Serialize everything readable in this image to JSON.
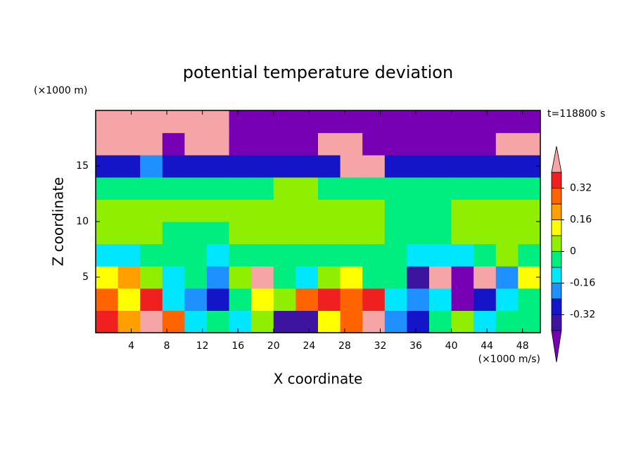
{
  "chart_data": {
    "type": "contour",
    "title": "potential temperature deviation",
    "xlabel": "X coordinate",
    "ylabel": "Z coordinate",
    "x_unit_label": "(×1000 m/s)",
    "y_unit_label": "(×1000 m)",
    "annotation": "t=118800 s",
    "xlim": [
      0,
      50
    ],
    "ylim": [
      0,
      20
    ],
    "xticks": [
      4,
      8,
      12,
      16,
      20,
      24,
      28,
      32,
      36,
      40,
      44,
      48
    ],
    "yticks": [
      5,
      10,
      15
    ],
    "x": [
      1.25,
      3.75,
      6.25,
      8.75,
      11.25,
      13.75,
      16.25,
      18.75,
      21.25,
      23.75,
      26.25,
      28.75,
      31.25,
      33.75,
      36.25,
      38.75,
      41.25,
      43.75,
      46.25,
      48.75
    ],
    "y": [
      1,
      3,
      5,
      7,
      9,
      11,
      13,
      15,
      17,
      19
    ],
    "z": [
      [
        0.38,
        0.2,
        0.5,
        0.25,
        -0.1,
        -0.04,
        -0.1,
        0.05,
        -0.35,
        -0.4,
        0.1,
        0.3,
        0.5,
        -0.2,
        -0.25,
        -0.04,
        0.05,
        -0.1,
        -0.04,
        -0.04
      ],
      [
        0.3,
        0.1,
        0.35,
        -0.1,
        -0.2,
        -0.3,
        -0.04,
        0.1,
        0.05,
        0.3,
        0.38,
        0.3,
        0.38,
        -0.1,
        -0.2,
        -0.1,
        -0.45,
        -0.3,
        -0.1,
        -0.04
      ],
      [
        0.1,
        0.2,
        0.05,
        -0.1,
        -0.04,
        -0.2,
        0.03,
        0.5,
        -0.04,
        -0.1,
        0.05,
        0.1,
        -0.04,
        -0.04,
        -0.35,
        0.5,
        -0.45,
        0.5,
        -0.2,
        0.1
      ],
      [
        -0.1,
        -0.1,
        -0.04,
        -0.04,
        -0.04,
        -0.1,
        -0.04,
        -0.04,
        -0.04,
        -0.04,
        -0.04,
        -0.04,
        -0.04,
        -0.04,
        -0.1,
        -0.1,
        -0.1,
        -0.04,
        0.05,
        -0.04
      ],
      [
        0.03,
        0.03,
        0.03,
        -0.04,
        -0.04,
        -0.04,
        0.03,
        0.03,
        0.03,
        0.03,
        0.03,
        0.03,
        0.03,
        -0.04,
        -0.04,
        -0.04,
        0.03,
        0.03,
        0.03,
        0.03
      ],
      [
        0.03,
        0.03,
        0.03,
        0.03,
        0.03,
        0.03,
        0.03,
        0.03,
        0.03,
        0.03,
        0.03,
        0.03,
        0.03,
        -0.04,
        -0.04,
        -0.04,
        0.03,
        0.03,
        0.03,
        0.03
      ],
      [
        -0.04,
        -0.04,
        -0.04,
        -0.04,
        -0.04,
        -0.04,
        -0.04,
        -0.04,
        0.03,
        0.03,
        -0.04,
        -0.04,
        -0.04,
        -0.04,
        -0.04,
        -0.04,
        -0.04,
        -0.04,
        -0.04,
        -0.04
      ],
      [
        -0.3,
        -0.3,
        -0.2,
        -0.3,
        -0.3,
        -0.3,
        -0.3,
        -0.3,
        -0.3,
        -0.3,
        -0.3,
        0.5,
        0.5,
        -0.3,
        -0.3,
        -0.3,
        -0.3,
        -0.3,
        -0.3,
        -0.3
      ],
      [
        0.5,
        0.5,
        0.5,
        -0.5,
        0.5,
        0.5,
        -0.5,
        -0.5,
        -0.5,
        -0.5,
        0.5,
        0.5,
        -0.5,
        -0.5,
        -0.5,
        -0.5,
        -0.5,
        -0.5,
        0.5,
        0.5
      ],
      [
        0.5,
        0.5,
        0.5,
        0.5,
        0.5,
        0.5,
        -0.5,
        -0.5,
        -0.5,
        -0.5,
        -0.5,
        -0.5,
        -0.5,
        -0.5,
        -0.5,
        -0.5,
        -0.5,
        -0.5,
        -0.5,
        -0.5
      ]
    ],
    "levels": [
      -0.4,
      -0.32,
      -0.24,
      -0.16,
      -0.08,
      0,
      0.08,
      0.16,
      0.24,
      0.32,
      0.4
    ],
    "colors": [
      "#7800b4",
      "#3c14a0",
      "#1414c8",
      "#1e90ff",
      "#00e6ff",
      "#00ee80",
      "#90ee00",
      "#ffff00",
      "#ffa000",
      "#ff6400",
      "#f02020",
      "#f5a5a5"
    ],
    "colorbar_ticks": [
      0.32,
      0.16,
      0,
      -0.16,
      -0.32
    ]
  }
}
